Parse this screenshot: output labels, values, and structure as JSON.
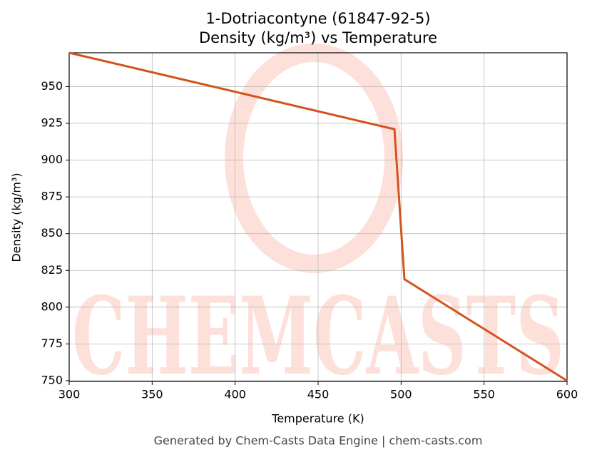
{
  "chart_data": {
    "type": "line",
    "title": "1-Dotriacontyne (61847-92-5)",
    "subtitle": "Density (kg/m³) vs Temperature",
    "x_label": "Temperature (K)",
    "y_label": "Density (kg/m³)",
    "footer": "Generated by Chem-Casts Data Engine | chem-casts.com",
    "watermark": "CHEMCASTS",
    "x": [
      300,
      496,
      502,
      600
    ],
    "series": [
      {
        "name": "Density",
        "color": "#d4531f",
        "values": [
          973,
          921,
          819,
          750
        ]
      }
    ],
    "xlim": [
      300,
      600
    ],
    "ylim": [
      749.5,
      973
    ],
    "xticks": [
      300,
      350,
      400,
      450,
      500,
      550,
      600
    ],
    "yticks": [
      750,
      775,
      800,
      825,
      850,
      875,
      900,
      925,
      950
    ],
    "grid": true
  }
}
